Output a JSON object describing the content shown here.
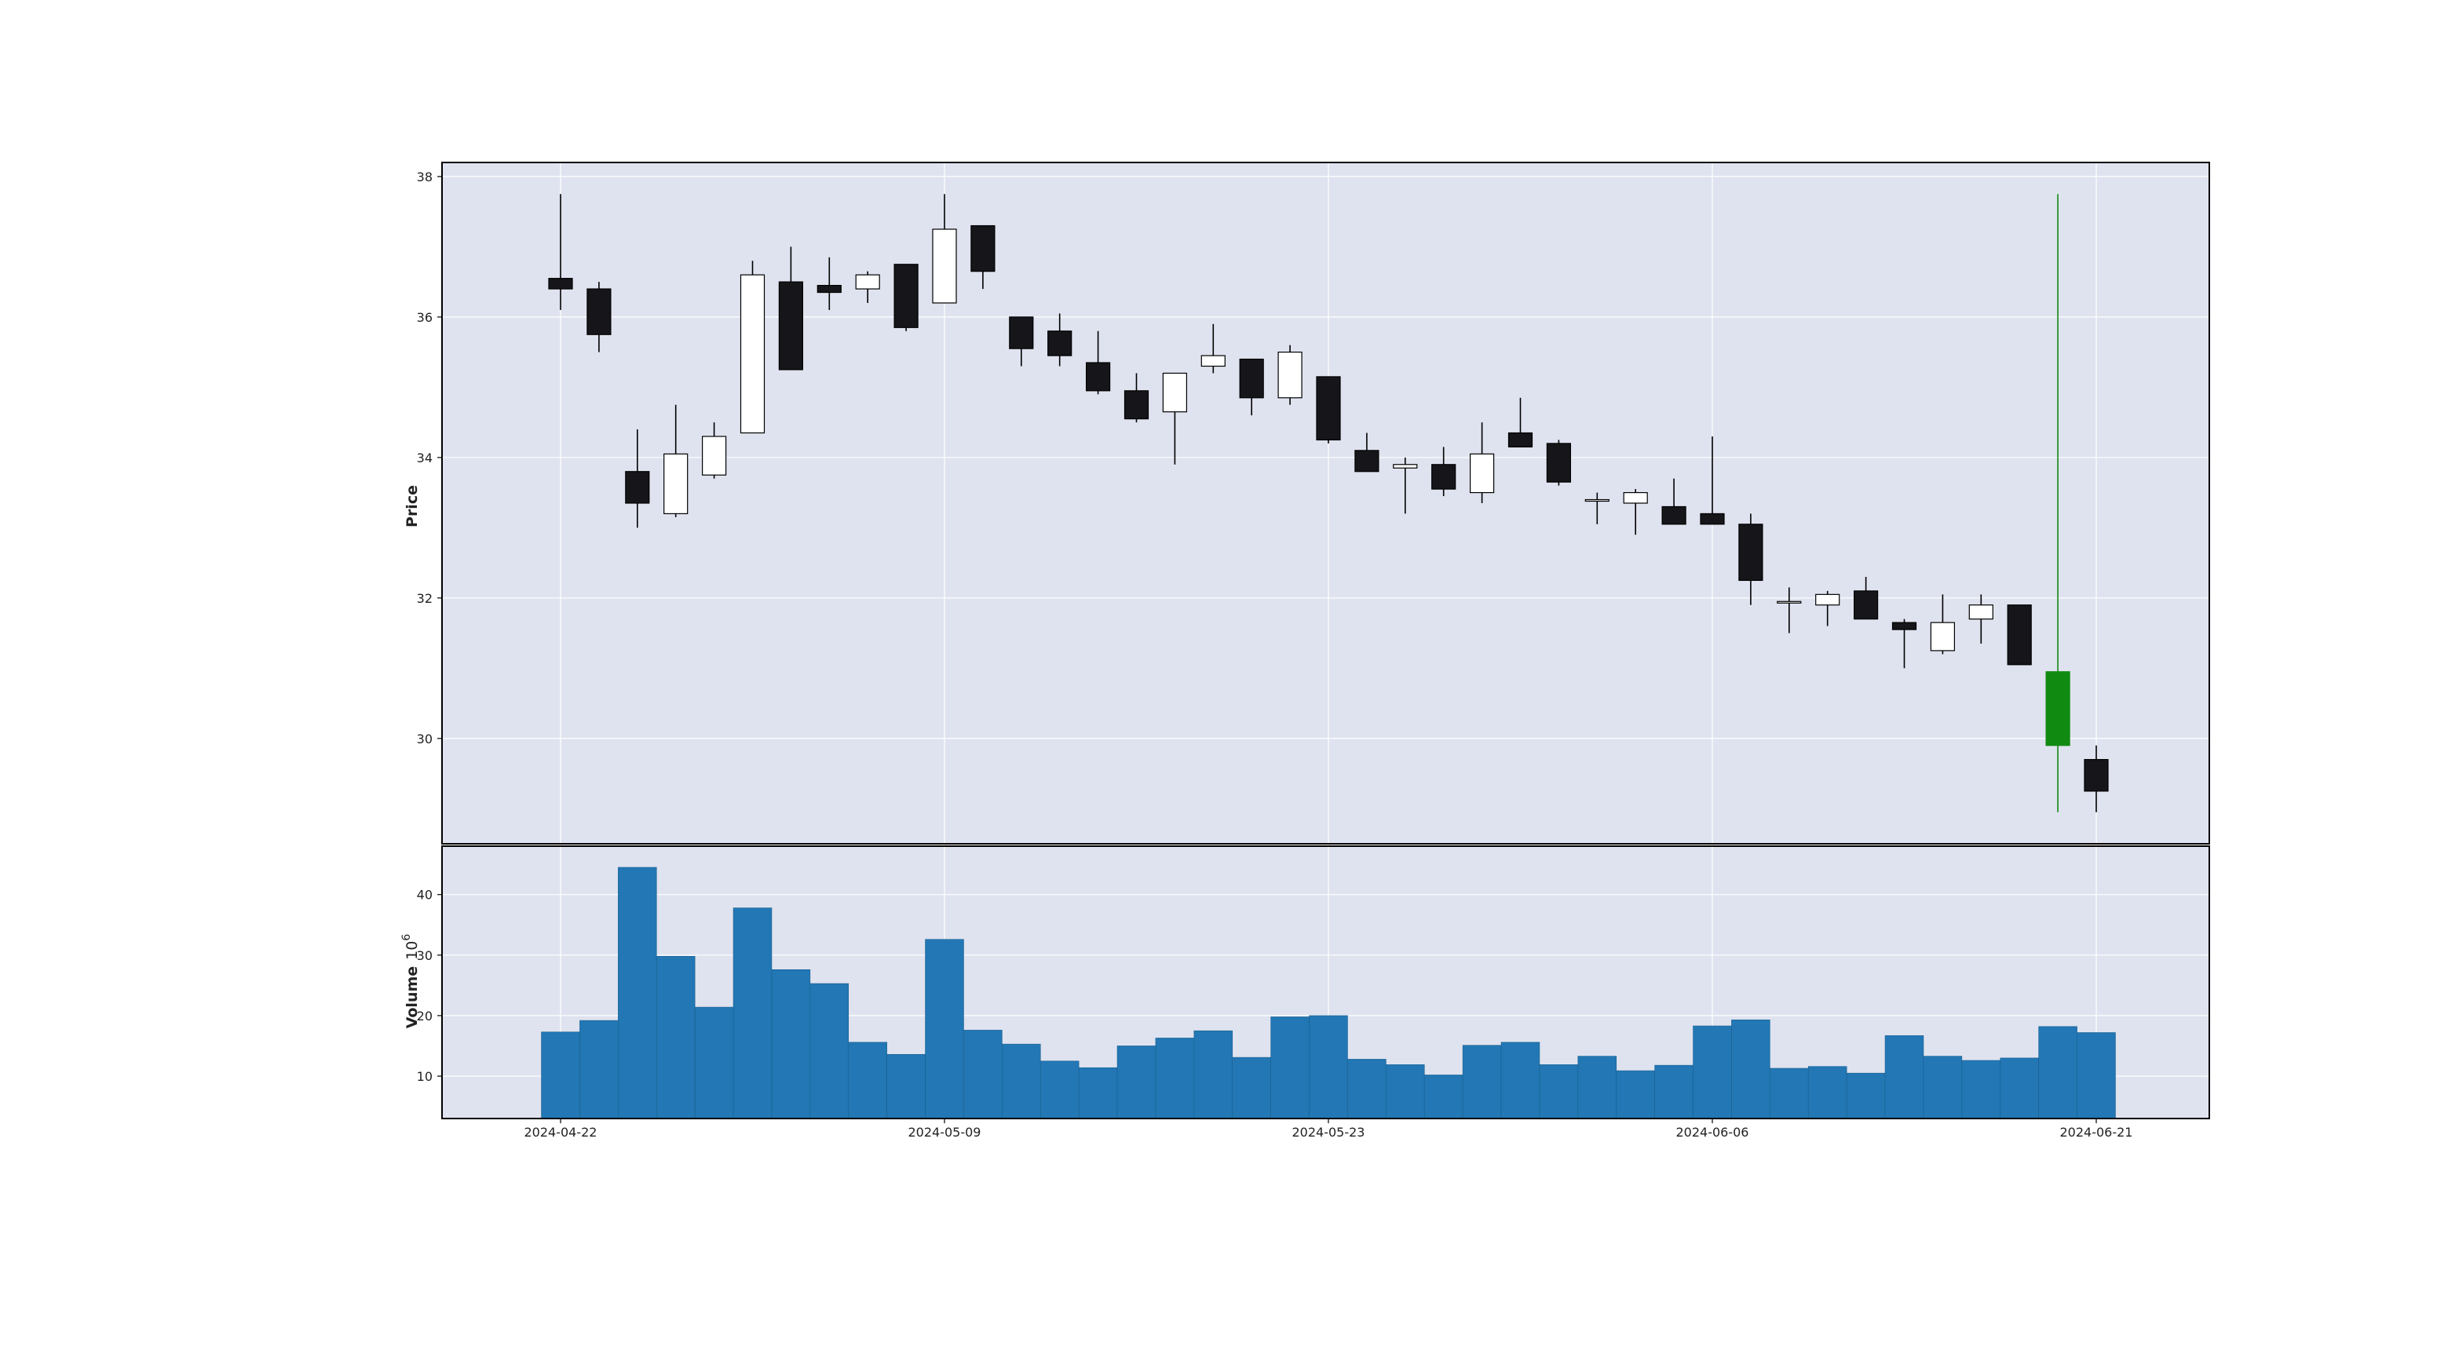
{
  "chart_data": {
    "type": "candlestick",
    "price_panel": {
      "ylabel": "Price",
      "ylim": [
        28.5,
        38.2
      ],
      "yticks": [
        30,
        32,
        34,
        36,
        38
      ],
      "grid": true
    },
    "volume_panel": {
      "ylabel": "Volume",
      "ylabel_exponent": "10",
      "ylabel_exponent_power": "6",
      "ylim": [
        3,
        48
      ],
      "yticks": [
        10,
        20,
        30,
        40
      ],
      "grid": true
    },
    "xtick_labels": [
      {
        "index": 0,
        "label": "2024-04-22"
      },
      {
        "index": 10,
        "label": "2024-05-09"
      },
      {
        "index": 20,
        "label": "2024-05-23"
      },
      {
        "index": 30,
        "label": "2024-06-06"
      },
      {
        "index": 40,
        "label": "2024-06-21"
      }
    ],
    "colors": {
      "background": "#dfe3ef",
      "grid": "#ffffff",
      "up_body": "#ffffff",
      "down_body": "#16161a",
      "outline": "#000000",
      "highlight": "#118a11",
      "volume_bar": "#2277b4"
    },
    "candles": [
      {
        "o": 36.55,
        "h": 37.75,
        "l": 36.1,
        "c": 36.4,
        "v": 17.3
      },
      {
        "o": 36.4,
        "h": 36.5,
        "l": 35.5,
        "c": 35.75,
        "v": 19.2
      },
      {
        "o": 33.8,
        "h": 34.4,
        "l": 33.0,
        "c": 33.35,
        "v": 44.5
      },
      {
        "o": 33.2,
        "h": 34.75,
        "l": 33.15,
        "c": 34.05,
        "v": 29.8
      },
      {
        "o": 33.75,
        "h": 34.5,
        "l": 33.7,
        "c": 34.3,
        "v": 21.4
      },
      {
        "o": 34.35,
        "h": 36.8,
        "l": 34.35,
        "c": 36.6,
        "v": 37.8
      },
      {
        "o": 36.5,
        "h": 37.0,
        "l": 35.25,
        "c": 35.25,
        "v": 27.6
      },
      {
        "o": 36.45,
        "h": 36.85,
        "l": 36.1,
        "c": 36.35,
        "v": 25.3
      },
      {
        "o": 36.4,
        "h": 36.65,
        "l": 36.2,
        "c": 36.6,
        "v": 15.6
      },
      {
        "o": 36.75,
        "h": 36.75,
        "l": 35.8,
        "c": 35.85,
        "v": 13.6
      },
      {
        "o": 36.2,
        "h": 37.75,
        "l": 36.2,
        "c": 37.25,
        "v": 32.6
      },
      {
        "o": 37.3,
        "h": 37.3,
        "l": 36.4,
        "c": 36.65,
        "v": 17.6
      },
      {
        "o": 36.0,
        "h": 36.0,
        "l": 35.3,
        "c": 35.55,
        "v": 15.3
      },
      {
        "o": 35.8,
        "h": 36.05,
        "l": 35.3,
        "c": 35.45,
        "v": 12.5
      },
      {
        "o": 35.35,
        "h": 35.8,
        "l": 34.9,
        "c": 34.95,
        "v": 11.4
      },
      {
        "o": 34.95,
        "h": 35.2,
        "l": 34.5,
        "c": 34.55,
        "v": 15.0
      },
      {
        "o": 34.65,
        "h": 35.2,
        "l": 33.9,
        "c": 35.2,
        "v": 16.3
      },
      {
        "o": 35.3,
        "h": 35.9,
        "l": 35.2,
        "c": 35.45,
        "v": 17.5
      },
      {
        "o": 35.4,
        "h": 35.4,
        "l": 34.6,
        "c": 34.85,
        "v": 13.1
      },
      {
        "o": 34.85,
        "h": 35.6,
        "l": 34.75,
        "c": 35.5,
        "v": 19.8
      },
      {
        "o": 35.15,
        "h": 35.15,
        "l": 34.2,
        "c": 34.25,
        "v": 20.0
      },
      {
        "o": 34.1,
        "h": 34.35,
        "l": 33.8,
        "c": 33.8,
        "v": 12.8
      },
      {
        "o": 33.85,
        "h": 34.0,
        "l": 33.2,
        "c": 33.9,
        "v": 11.9
      },
      {
        "o": 33.9,
        "h": 34.15,
        "l": 33.45,
        "c": 33.55,
        "v": 10.2
      },
      {
        "o": 33.5,
        "h": 34.5,
        "l": 33.35,
        "c": 34.05,
        "v": 15.1
      },
      {
        "o": 34.35,
        "h": 34.85,
        "l": 34.15,
        "c": 34.15,
        "v": 15.6
      },
      {
        "o": 34.2,
        "h": 34.25,
        "l": 33.6,
        "c": 33.65,
        "v": 11.9
      },
      {
        "o": 33.4,
        "h": 33.5,
        "l": 33.05,
        "c": 33.4,
        "v": 13.3
      },
      {
        "o": 33.35,
        "h": 33.55,
        "l": 32.9,
        "c": 33.5,
        "v": 10.9
      },
      {
        "o": 33.3,
        "h": 33.7,
        "l": 33.05,
        "c": 33.05,
        "v": 11.8
      },
      {
        "o": 33.2,
        "h": 34.3,
        "l": 33.05,
        "c": 33.05,
        "v": 18.3
      },
      {
        "o": 33.05,
        "h": 33.2,
        "l": 31.9,
        "c": 32.25,
        "v": 19.3
      },
      {
        "o": 31.95,
        "h": 32.15,
        "l": 31.5,
        "c": 31.95,
        "v": 11.3
      },
      {
        "o": 31.9,
        "h": 32.1,
        "l": 31.6,
        "c": 32.05,
        "v": 11.6
      },
      {
        "o": 32.1,
        "h": 32.3,
        "l": 31.7,
        "c": 31.7,
        "v": 10.5
      },
      {
        "o": 31.65,
        "h": 31.7,
        "l": 31.0,
        "c": 31.55,
        "v": 16.7
      },
      {
        "o": 31.25,
        "h": 32.05,
        "l": 31.2,
        "c": 31.65,
        "v": 13.3
      },
      {
        "o": 31.7,
        "h": 32.05,
        "l": 31.35,
        "c": 31.9,
        "v": 12.6
      },
      {
        "o": 31.9,
        "h": 31.9,
        "l": 31.05,
        "c": 31.05,
        "v": 13.0
      },
      {
        "o": 30.95,
        "h": 37.75,
        "l": 28.95,
        "c": 29.9,
        "v": 18.2,
        "highlight": true
      },
      {
        "o": 29.7,
        "h": 29.9,
        "l": 28.95,
        "c": 29.25,
        "v": 17.2
      }
    ]
  }
}
